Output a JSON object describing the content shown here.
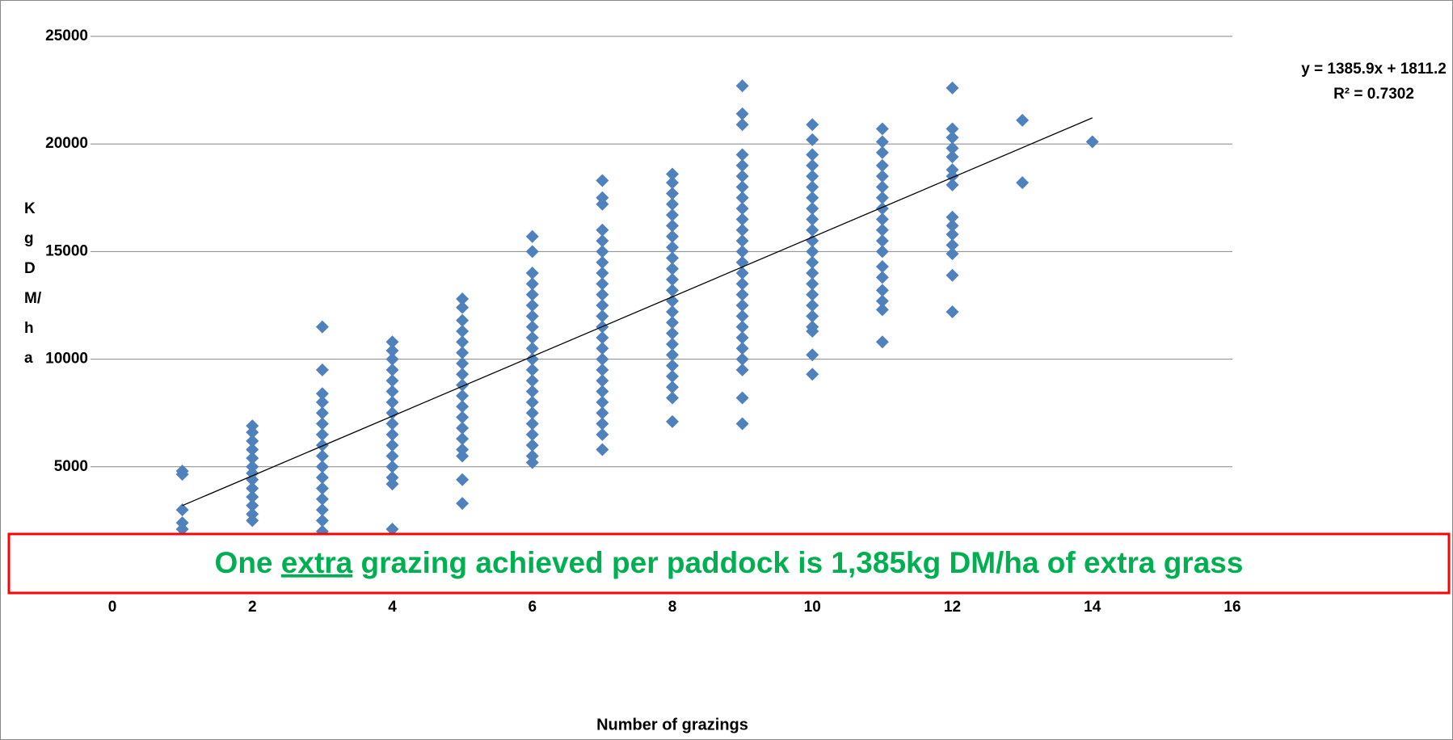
{
  "chart_data": {
    "type": "scatter",
    "x_label": "Number of grazings",
    "y_label": "Kg DM/ha",
    "color": "#4f81bd",
    "xlim": [
      0,
      16
    ],
    "xticks": [
      0,
      2,
      4,
      6,
      8,
      10,
      12,
      14,
      16
    ],
    "ylim": [
      0,
      25000
    ],
    "yticks": [
      5000,
      10000,
      15000,
      20000,
      25000
    ],
    "grid": true,
    "trendline": {
      "label": "y = 1385.9x + 1811.2",
      "r2_label": "R² = 0.7302",
      "slope": 1385.9,
      "intercept": 1811.2,
      "xrange": [
        1,
        14
      ]
    },
    "banner": {
      "before": "One ",
      "underlined": "extra",
      "after": " grazing achieved per paddock is 1,385kg DM/ha of extra grass"
    },
    "columns": [
      {
        "x": 1,
        "values": [
          4800,
          4650,
          3000,
          2400,
          2100
        ]
      },
      {
        "x": 2,
        "values": [
          6900,
          6600,
          6200,
          5800,
          5400,
          5000,
          4700,
          4400,
          4000,
          3600,
          3200,
          2800,
          2500
        ]
      },
      {
        "x": 3,
        "values": [
          11500,
          9500,
          8400,
          8000,
          7500,
          7000,
          6500,
          6000,
          5500,
          5000,
          4500,
          4000,
          3500,
          3000,
          2500,
          2000
        ]
      },
      {
        "x": 4,
        "values": [
          10800,
          10400,
          10000,
          9500,
          9000,
          8500,
          8000,
          7500,
          7000,
          6500,
          6000,
          5500,
          5000,
          4500,
          4200,
          2100
        ]
      },
      {
        "x": 5,
        "values": [
          12800,
          12400,
          11800,
          11300,
          10800,
          10300,
          9800,
          9300,
          8800,
          8300,
          7800,
          7300,
          6800,
          6300,
          5800,
          5500,
          4400,
          3300
        ]
      },
      {
        "x": 6,
        "values": [
          15700,
          15000,
          14000,
          13500,
          13000,
          12500,
          12000,
          11500,
          11000,
          10500,
          10000,
          9500,
          9000,
          8500,
          8000,
          7500,
          7000,
          6500,
          6000,
          5500,
          5200
        ]
      },
      {
        "x": 7,
        "values": [
          18300,
          17500,
          17200,
          16000,
          15500,
          15000,
          14500,
          14000,
          13500,
          13000,
          12500,
          12000,
          11500,
          11000,
          10500,
          10000,
          9500,
          9000,
          8500,
          8000,
          7500,
          7000,
          6500,
          5800
        ]
      },
      {
        "x": 8,
        "values": [
          18600,
          18200,
          17700,
          17200,
          16700,
          16200,
          15700,
          15200,
          14700,
          14200,
          13700,
          13200,
          12700,
          12200,
          11700,
          11200,
          10700,
          10200,
          9700,
          9200,
          8700,
          8200,
          7100
        ]
      },
      {
        "x": 9,
        "values": [
          22700,
          21400,
          20900,
          19500,
          19000,
          18500,
          18000,
          17500,
          17000,
          16500,
          16000,
          15500,
          15000,
          14500,
          14000,
          13500,
          13000,
          12500,
          12000,
          11500,
          11000,
          10500,
          10000,
          9500,
          8200,
          7000
        ]
      },
      {
        "x": 10,
        "values": [
          20900,
          20200,
          19500,
          19000,
          18500,
          18000,
          17500,
          17000,
          16500,
          16000,
          15500,
          15000,
          14500,
          14000,
          13500,
          13000,
          12500,
          12000,
          11500,
          11300,
          10200,
          9300
        ]
      },
      {
        "x": 11,
        "values": [
          20700,
          20100,
          19600,
          19000,
          18500,
          18000,
          17500,
          17000,
          16500,
          16000,
          15500,
          15000,
          14300,
          13800,
          13200,
          12700,
          12300,
          10800
        ]
      },
      {
        "x": 12,
        "values": [
          22600,
          20700,
          20300,
          19800,
          19400,
          18800,
          18500,
          18100,
          16600,
          16200,
          15800,
          15300,
          14900,
          13900,
          12200
        ]
      },
      {
        "x": 13,
        "values": [
          21100,
          18200
        ]
      },
      {
        "x": 14,
        "values": [
          20100
        ]
      }
    ]
  }
}
